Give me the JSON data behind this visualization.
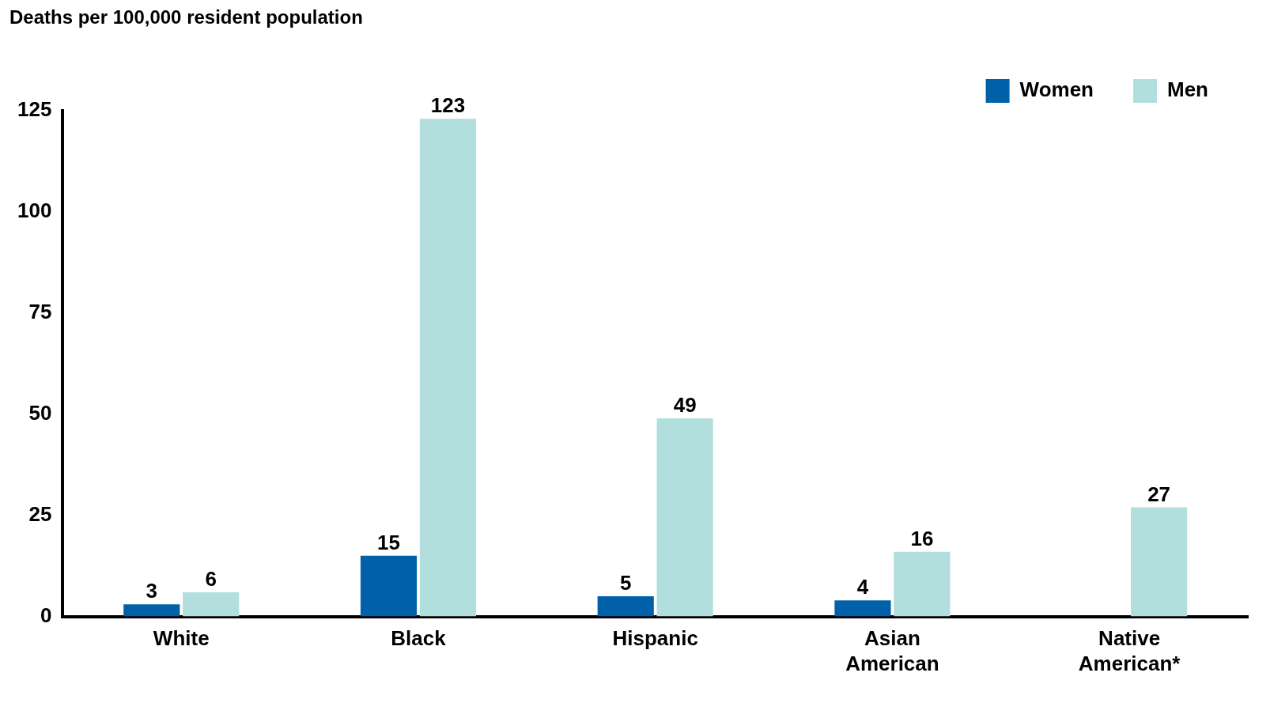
{
  "chart_data": {
    "type": "bar",
    "ylabel": "Deaths per 100,000 resident population",
    "categories": [
      "White",
      "Black",
      "Hispanic",
      "Asian American",
      "Native American*"
    ],
    "series": [
      {
        "name": "Women",
        "color": "#0060a8",
        "values": [
          3,
          15,
          5,
          4,
          null
        ]
      },
      {
        "name": "Men",
        "color": "#b3dede",
        "values": [
          6,
          123,
          49,
          16,
          27
        ]
      }
    ],
    "ylim": [
      0,
      125
    ],
    "yticks": [
      0,
      25,
      50,
      75,
      100,
      125
    ],
    "grid": false,
    "legend": "top right",
    "data_labels": true
  }
}
